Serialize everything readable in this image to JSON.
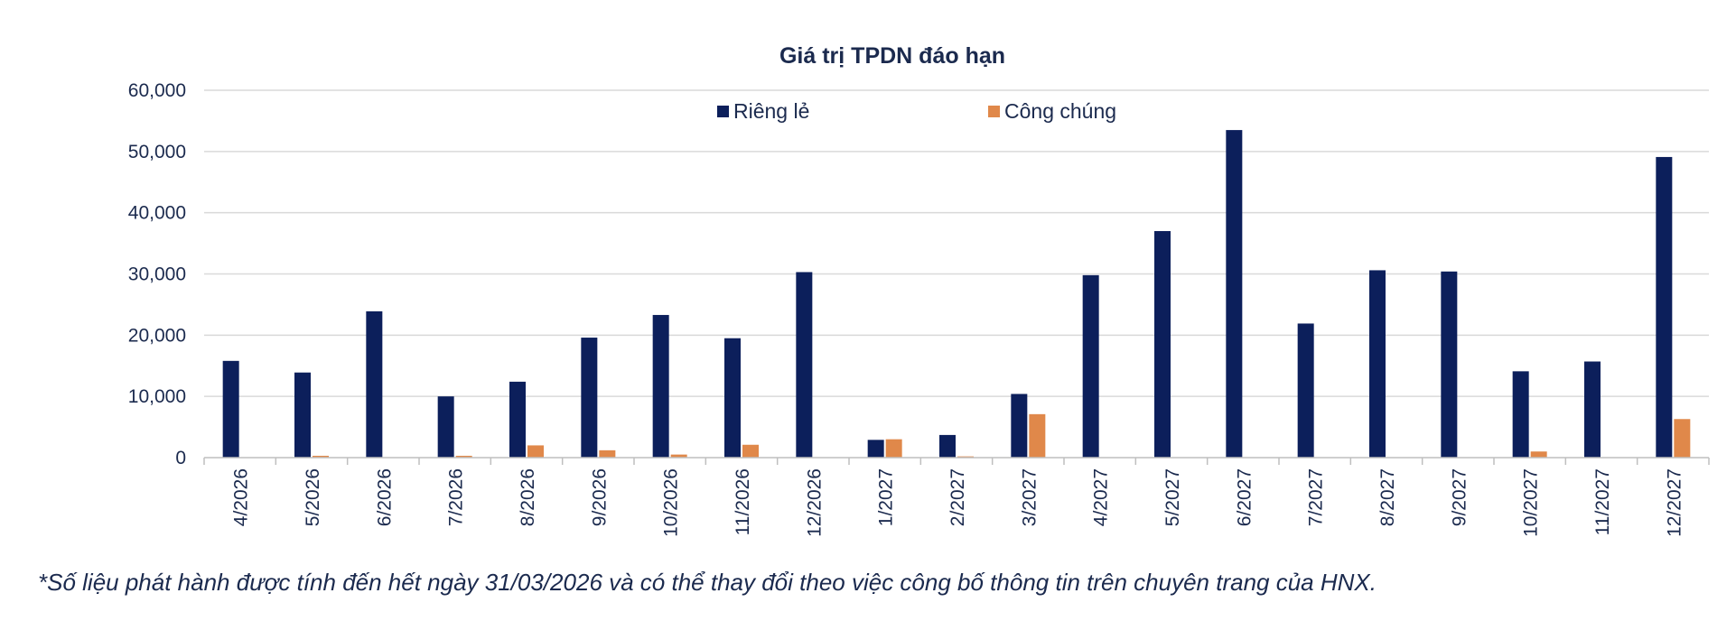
{
  "chart_data": {
    "type": "bar",
    "title": "Giá trị TPDN đáo hạn",
    "xlabel": "",
    "ylabel": "",
    "ylim": [
      0,
      60000
    ],
    "yticks": [
      "0",
      "10,000",
      "20,000",
      "30,000",
      "40,000",
      "50,000",
      "60,000"
    ],
    "grid": true,
    "legend_position": "top-center",
    "categories": [
      "4/2026",
      "5/2026",
      "6/2026",
      "7/2026",
      "8/2026",
      "9/2026",
      "10/2026",
      "11/2026",
      "12/2026",
      "1/2027",
      "2/2027",
      "3/2027",
      "4/2027",
      "5/2027",
      "6/2027",
      "7/2027",
      "8/2027",
      "9/2027",
      "10/2027",
      "11/2027",
      "12/2027"
    ],
    "series": [
      {
        "name": "Riêng lẻ",
        "color": "#0c1f5b",
        "values": [
          15800,
          13900,
          23900,
          10000,
          12400,
          19600,
          23300,
          19500,
          30300,
          2900,
          3700,
          10400,
          29800,
          37000,
          53500,
          21900,
          30600,
          30400,
          14100,
          15700,
          49100
        ]
      },
      {
        "name": "Công chúng",
        "color": "#e0884a",
        "values": [
          0,
          300,
          0,
          300,
          2000,
          1200,
          500,
          2100,
          0,
          3000,
          200,
          7100,
          0,
          0,
          0,
          0,
          0,
          0,
          1000,
          0,
          6300
        ]
      }
    ]
  },
  "footnote": {
    "text": "*Số liệu phát hành được tính đến hết ngày 31/03/2026 và có thể thay đổi theo việc công bố thông tin trên chuyên trang của HNX."
  }
}
